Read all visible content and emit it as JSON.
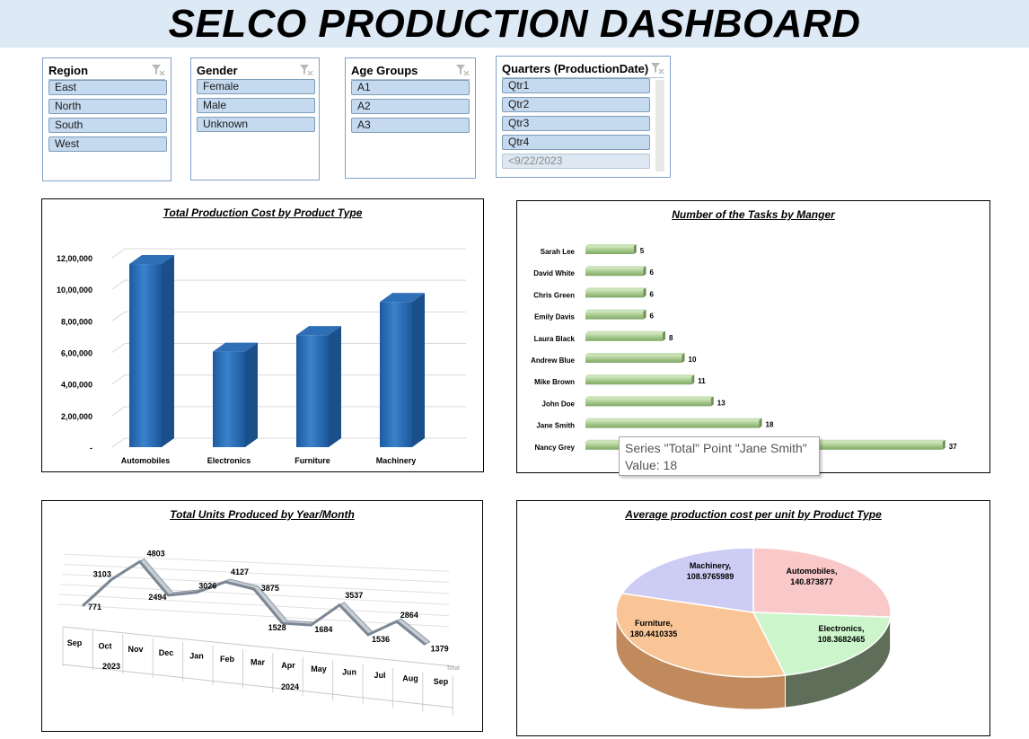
{
  "dashboard": {
    "title": "SELCO PRODUCTION DASHBOARD"
  },
  "slicers": {
    "region": {
      "title": "Region",
      "items": [
        "East",
        "North",
        "South",
        "West"
      ]
    },
    "gender": {
      "title": "Gender",
      "items": [
        "Female",
        "Male",
        "Unknown"
      ]
    },
    "age_groups": {
      "title": "Age Groups",
      "items": [
        "A1",
        "A2",
        "A3"
      ]
    },
    "quarters": {
      "title": "Quarters (ProductionDate)",
      "items": [
        "Qtr1",
        "Qtr2",
        "Qtr3",
        "Qtr4",
        "<9/22/2023"
      ]
    }
  },
  "icons": {
    "slicer_clear": "clear-filter-icon"
  },
  "colors": {
    "title_bar": "#dde9f5",
    "bar_blue": "#2166b0",
    "bar_green": "#a6c98c",
    "line_gray": "#9aa4b0",
    "pie_machinery": "#ccccf5",
    "pie_automobiles": "#f9c9c9",
    "pie_electronics": "#ccf5cc",
    "pie_furniture": "#f9c596"
  },
  "tooltip": {
    "line1": "Series \"Total\" Point \"Jane Smith\"",
    "line2": "Value: 18"
  },
  "chart_data": [
    {
      "type": "bar",
      "title": "Total Production Cost by Product Type",
      "categories": [
        "Automobiles",
        "Electronics",
        "Furniture",
        "Machinery"
      ],
      "values": [
        1160000,
        605000,
        710000,
        920000
      ],
      "ylim": [
        0,
        1200000
      ],
      "yticks": [
        "-",
        "2,00,000",
        "4,00,000",
        "6,00,000",
        "8,00,000",
        "10,00,000",
        "12,00,000"
      ],
      "grid": true,
      "legend": "none"
    },
    {
      "type": "bar",
      "orientation": "horizontal",
      "title": "Number of the Tasks by Manger",
      "categories": [
        "Sarah Lee",
        "David White",
        "Chris Green",
        "Emily Davis",
        "Laura Black",
        "Andrew Blue",
        "Mike Brown",
        "John Doe",
        "Jane Smith",
        "Nancy Grey"
      ],
      "values": [
        5,
        6,
        6,
        6,
        8,
        10,
        11,
        13,
        18,
        37
      ],
      "legend": "none"
    },
    {
      "type": "line",
      "title": "Total Units Produced by Year/Month",
      "x": [
        "Sep",
        "Oct",
        "Nov",
        "Dec",
        "Jan",
        "Feb",
        "Mar",
        "Apr",
        "May",
        "Jun",
        "Jul",
        "Aug",
        "Sep"
      ],
      "year_groups": [
        {
          "label": "2023",
          "span": 4
        },
        {
          "label": "2024",
          "span": 9
        }
      ],
      "series": [
        {
          "name": "Total",
          "values": [
            771,
            3103,
            4803,
            2494,
            3026,
            4127,
            3875,
            1528,
            1684,
            3537,
            1536,
            2864,
            1379
          ]
        }
      ]
    },
    {
      "type": "pie",
      "title": "Average production cost per unit by Product Type",
      "labels": [
        "Automobiles",
        "Electronics",
        "Furniture",
        "Machinery"
      ],
      "values": [
        140.873877,
        108.3682465,
        180.4410335,
        108.9765989
      ],
      "value_labels": [
        "140.873877",
        "108.3682465",
        "180.4410335",
        "108.9765989"
      ]
    }
  ]
}
